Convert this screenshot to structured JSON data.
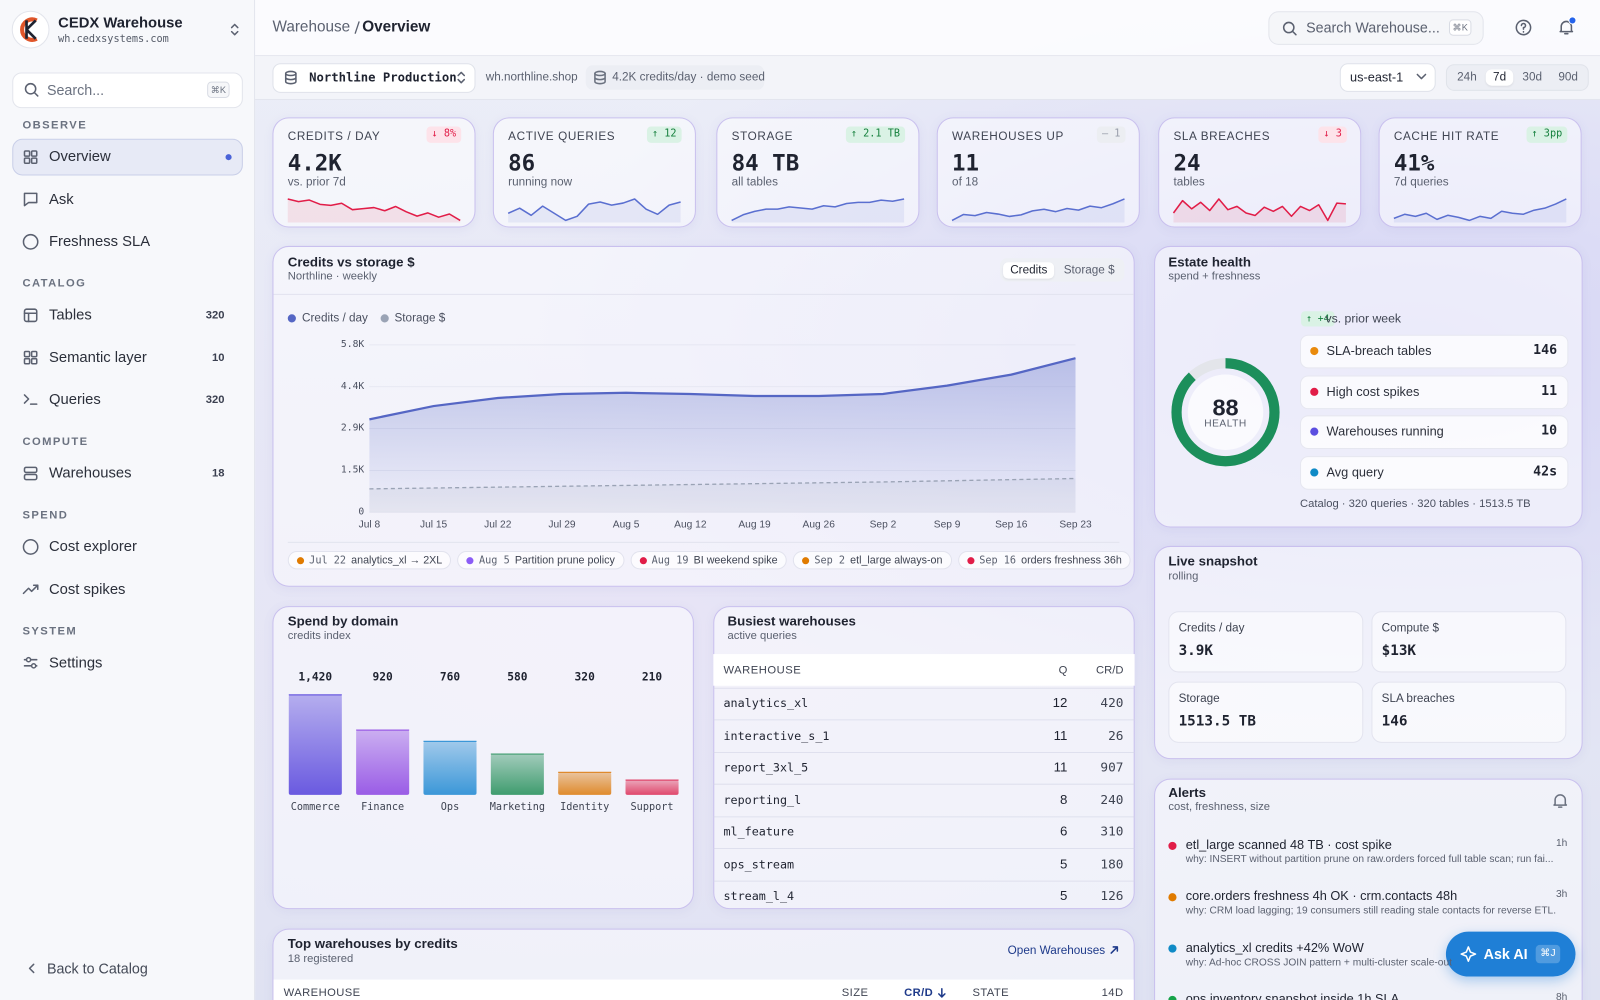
{
  "sidebar": {
    "brand": "CEDX Warehouse",
    "domain": "wh.cedxsystems.com",
    "search": "Search...",
    "search_key": "⌘K",
    "sections": [
      {
        "title": "OBSERVE",
        "items": [
          {
            "label": "Overview",
            "active": true
          },
          {
            "label": "Ask"
          },
          {
            "label": "Freshness SLA"
          }
        ]
      },
      {
        "title": "CATALOG",
        "items": [
          {
            "label": "Tables",
            "count": 320
          },
          {
            "label": "Semantic layer",
            "count": 10
          },
          {
            "label": "Queries",
            "count": 320
          }
        ]
      },
      {
        "title": "COMPUTE",
        "items": [
          {
            "label": "Warehouses",
            "count": 18
          }
        ]
      },
      {
        "title": "SPEND",
        "items": [
          {
            "label": "Cost explorer"
          },
          {
            "label": "Cost spikes"
          }
        ]
      },
      {
        "title": "SYSTEM",
        "items": [
          {
            "label": "Settings"
          }
        ]
      }
    ],
    "back": "Back to Catalog"
  },
  "topbar": {
    "breadcrumb": [
      "Warehouse",
      "Overview"
    ],
    "search": "Search Warehouse...",
    "search_key": "⌘K"
  },
  "filters": {
    "project": "Northline Production",
    "domain": "wh.northline.shop",
    "seed": "4.2K credits/day · demo seed",
    "region": "us-east-1",
    "ranges": [
      "24h",
      "7d",
      "30d",
      "90d"
    ],
    "active_range": 1
  },
  "kpis": [
    {
      "label": "CREDITS / DAY",
      "delta": "↓ 8%",
      "trend": "down",
      "value": "4.2K",
      "sub": "vs. prior 7d",
      "color": "#e11d48",
      "spark": [
        7,
        6.5,
        6.8,
        6,
        5.8,
        6.2,
        5,
        5.2,
        5.4,
        4.8,
        5.6,
        4.6,
        3.8,
        4.4,
        3.6,
        4.2,
        3
      ]
    },
    {
      "label": "ACTIVE QUERIES",
      "delta": "↑ 12",
      "trend": "up",
      "value": "86",
      "sub": "running now",
      "color": "#5a6fd0",
      "spark": [
        4,
        5,
        3.6,
        5.4,
        4,
        2.6,
        3.4,
        5.8,
        6.2,
        5.6,
        6,
        6.8,
        4.8,
        3.8,
        5.6,
        6.2
      ]
    },
    {
      "label": "STORAGE",
      "delta": "↑ 2.1 TB",
      "trend": "up",
      "value": "84 TB",
      "sub": "all tables",
      "color": "#5a6fd0",
      "spark": [
        2,
        3,
        3.6,
        4,
        4,
        4.4,
        4.2,
        4,
        4.6,
        4.4,
        5,
        5.2,
        5.2,
        5.6,
        5.4,
        5.8
      ]
    },
    {
      "label": "WAREHOUSES UP",
      "delta": "— 1",
      "trend": "flat",
      "value": "11",
      "sub": "of 18",
      "color": "#5a6fd0",
      "spark": [
        2,
        3.5,
        3.2,
        4,
        3.6,
        3,
        3.4,
        4.4,
        4.8,
        4.2,
        5,
        4.6,
        5.6,
        5.2,
        6.2,
        7.4
      ]
    },
    {
      "label": "SLA BREACHES",
      "delta": "↓ 3",
      "trend": "down",
      "value": "24",
      "sub": "tables",
      "color": "#e11d48",
      "spark": [
        3,
        6,
        4,
        5.6,
        3.6,
        6.4,
        3.8,
        4.6,
        3,
        2.4,
        4.4,
        3.4,
        4.6,
        2.2,
        4.6,
        3.6,
        5,
        1.2,
        5.4,
        5.2
      ]
    },
    {
      "label": "CACHE HIT RATE",
      "delta": "↑ 3pp",
      "trend": "up",
      "value": "41%",
      "sub": "7d queries",
      "color": "#5a6fd0",
      "spark": [
        3,
        3.8,
        3.4,
        4,
        2.8,
        3.6,
        3.2,
        2.6,
        3.4,
        3,
        4.4,
        4,
        3.8,
        4.6,
        5,
        5.8,
        6.8
      ]
    }
  ],
  "chart_data": [
    {
      "type": "area",
      "title": "Credits vs storage $",
      "subtitle": "Northline · weekly",
      "toggle": [
        "Credits",
        "Storage $"
      ],
      "active_toggle": 0,
      "categories": [
        "Jul 8",
        "Jul 15",
        "Jul 22",
        "Jul 29",
        "Aug 5",
        "Aug 12",
        "Aug 19",
        "Aug 26",
        "Sep 2",
        "Sep 9",
        "Sep 16",
        "Sep 23"
      ],
      "series": [
        {
          "name": "Credits / day",
          "color": "#5566c4",
          "values": [
            3220,
            3680,
            3960,
            4100,
            4140,
            4100,
            4030,
            4030,
            4100,
            4390,
            4770,
            5340
          ]
        },
        {
          "name": "Storage $",
          "color": "#9aa3b5",
          "dashed": true,
          "values": [
            810,
            840,
            870,
            900,
            930,
            960,
            990,
            1020,
            1050,
            1090,
            1130,
            1170
          ]
        }
      ],
      "ylim": [
        0,
        5800
      ],
      "yticks": [
        0,
        {
          "value": 1450,
          "label": "1.5K"
        },
        {
          "value": 2900,
          "label": "2.9K"
        },
        {
          "value": 4350,
          "label": "4.4K"
        },
        {
          "value": 5800,
          "label": "5.8K"
        }
      ],
      "grid": true,
      "annotations": [
        {
          "date": "Jul 22",
          "text": "analytics_xl → 2XL",
          "color": "#e07b00"
        },
        {
          "date": "Aug 5",
          "text": "Partition prune policy",
          "color": "#8b5cf6"
        },
        {
          "date": "Aug 19",
          "text": "BI weekend spike",
          "color": "#e11d48"
        },
        {
          "date": "Sep 2",
          "text": "etl_large always-on",
          "color": "#e07b00"
        },
        {
          "date": "Sep 16",
          "text": "orders freshness 36h",
          "color": "#e11d48"
        }
      ]
    },
    {
      "type": "bar",
      "title": "Spend by domain",
      "subtitle": "credits index",
      "categories": [
        "Commerce",
        "Finance",
        "Ops",
        "Marketing",
        "Identity",
        "Support"
      ],
      "values": [
        1420,
        920,
        760,
        580,
        320,
        210
      ],
      "value_labels": [
        "1,420",
        "920",
        "760",
        "580",
        "320",
        "210"
      ],
      "colors": [
        "#6a5ae0",
        "#9a5ce6",
        "#3b97d8",
        "#3f9c6e",
        "#df8a2c",
        "#e0476b"
      ],
      "ylim": [
        0,
        1420
      ]
    }
  ],
  "estate": {
    "title": "Estate health",
    "subtitle": "spend + freshness",
    "score": 88,
    "score_range": [
      0,
      100
    ],
    "score_label": "HEALTH",
    "delta": "↑ +4",
    "delta_note": "vs. prior week",
    "rows": [
      {
        "label": "SLA-breach tables",
        "value": 146,
        "color": "#e98a0c"
      },
      {
        "label": "High cost spikes",
        "value": 11,
        "color": "#e11d48"
      },
      {
        "label": "Warehouses running",
        "value": 10,
        "color": "#5b4ee0"
      },
      {
        "label": "Avg query",
        "value": "42s",
        "color": "#0f8ac6"
      }
    ],
    "footer": "Catalog · 320 queries · 320 tables · 1513.5 TB"
  },
  "busiest": {
    "title": "Busiest warehouses",
    "subtitle": "active queries",
    "columns": [
      "WAREHOUSE",
      "Q",
      "CR/D"
    ],
    "rows": [
      [
        "analytics_xl",
        12,
        420
      ],
      [
        "interactive_s_1",
        11,
        26
      ],
      [
        "report_3xl_5",
        11,
        907
      ],
      [
        "reporting_l",
        8,
        240
      ],
      [
        "ml_feature",
        6,
        310
      ],
      [
        "ops_stream",
        5,
        180
      ],
      [
        "stream_l_4",
        5,
        126
      ]
    ]
  },
  "live": {
    "title": "Live snapshot",
    "subtitle": "rolling",
    "tiles": [
      {
        "label": "Credits / day",
        "value": "3.9K"
      },
      {
        "label": "Compute $",
        "value": "$13K"
      },
      {
        "label": "Storage",
        "value": "1513.5 TB"
      },
      {
        "label": "SLA breaches",
        "value": 146
      }
    ]
  },
  "alerts": {
    "title": "Alerts",
    "subtitle": "cost, freshness, size",
    "items": [
      {
        "title": "etl_large scanned 48 TB · cost spike",
        "why": "why: INSERT without partition prune on raw.orders forced full table scan; run fai...",
        "age": "1h",
        "color": "#e11d48"
      },
      {
        "title": "core.orders freshness 4h OK · crm.contacts 48h",
        "why": "why: CRM load lagging; 19 consumers still reading stale contacts for reverse ETL.",
        "age": "3h",
        "color": "#e07b00"
      },
      {
        "title": "analytics_xl credits +42% WoW",
        "why": "why: Ad-hoc CROSS JOIN pattern + multi-cluster scale-out",
        "color": "#0f8ac6"
      },
      {
        "title": "ops.inventory snapshot inside 1h SLA",
        "age": "8h",
        "color": "#16a34a"
      }
    ]
  },
  "top": {
    "title": "Top warehouses by credits",
    "subtitle": "18 registered",
    "link": "Open Warehouses",
    "columns": [
      "WAREHOUSE",
      "SIZE",
      "CR/D",
      "STATE",
      "14D"
    ],
    "sort_column": 2
  },
  "ask": {
    "label": "Ask AI",
    "key": "⌘J"
  }
}
